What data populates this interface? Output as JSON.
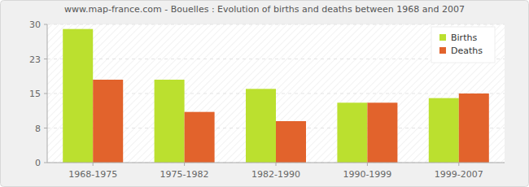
{
  "chart_data": {
    "type": "bar",
    "title": "www.map-france.com - Bouelles : Evolution of births and deaths between 1968 and 2007",
    "categories": [
      "1968-1975",
      "1975-1982",
      "1982-1990",
      "1990-1999",
      "1999-2007"
    ],
    "series": [
      {
        "name": "Births",
        "color": "#bbe02f",
        "values": [
          29,
          18,
          16,
          13,
          14
        ]
      },
      {
        "name": "Deaths",
        "color": "#e2632c",
        "values": [
          18,
          11,
          9,
          13,
          15
        ]
      }
    ],
    "ylim": [
      0,
      30
    ],
    "yticks": [
      0,
      {
        "value": 7.5,
        "label": "8"
      },
      15,
      {
        "value": 22.5,
        "label": "23"
      },
      30
    ],
    "grid": true,
    "legend": "top-right"
  }
}
